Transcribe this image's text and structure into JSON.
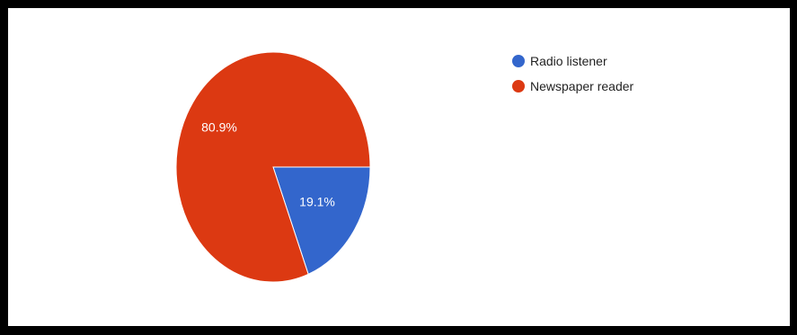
{
  "chart_data": {
    "type": "pie",
    "categories": [
      "Radio listener",
      "Newspaper reader"
    ],
    "values": [
      19.1,
      80.9
    ],
    "labels": [
      "19.1%",
      "80.9%"
    ],
    "colors": [
      "#3366cc",
      "#dc3912"
    ],
    "legend": {
      "placement": "right",
      "entries": [
        "Radio listener",
        "Newspaper reader"
      ]
    }
  }
}
